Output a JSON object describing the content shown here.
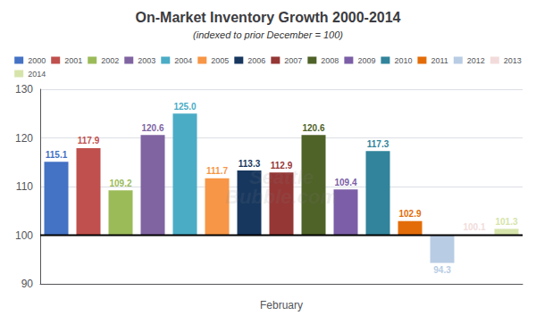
{
  "chart_data": {
    "type": "bar",
    "title": "On-Market Inventory Growth 2000-2014",
    "subtitle": "(indexed to prior December = 100)",
    "xlabel": "February",
    "annotations": [
      "Seattle\nBubble.com"
    ],
    "categories": [
      "2000",
      "2001",
      "2002",
      "2003",
      "2004",
      "2005",
      "2006",
      "2007",
      "2008",
      "2009",
      "2010",
      "2011",
      "2012",
      "2013",
      "2014"
    ],
    "values": [
      115.1,
      117.9,
      109.2,
      120.6,
      125.0,
      111.7,
      113.3,
      112.9,
      120.6,
      109.4,
      117.3,
      102.9,
      94.3,
      100.1,
      101.3
    ],
    "value_labels": [
      "115.1",
      "117.9",
      "109.2",
      "120.6",
      "125.0",
      "111.7",
      "113.3",
      "112.9",
      "120.6",
      "109.4",
      "117.3",
      "102.9",
      "94.3",
      "100.1",
      "101.3"
    ],
    "colors": [
      "#4472C4",
      "#C0504D",
      "#9BBB59",
      "#8064A2",
      "#4BACC6",
      "#F79646",
      "#17375E",
      "#953735",
      "#4F6228",
      "#7B5EA7",
      "#31849B",
      "#E36C09",
      "#B8CCE4",
      "#F2DCDB",
      "#D6E4AA"
    ],
    "baseline": 100,
    "ylim": [
      90,
      130
    ],
    "yticks": [
      90,
      100,
      110,
      120,
      130
    ],
    "grid": true,
    "legend": "top",
    "data_labels": true,
    "tick_labels": "y"
  }
}
